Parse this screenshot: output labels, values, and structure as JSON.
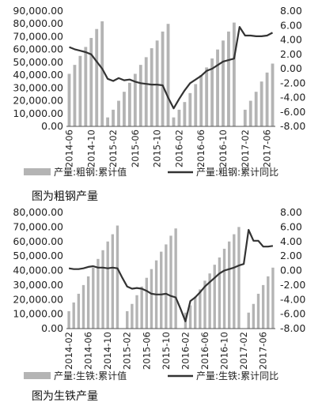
{
  "colors": {
    "bar": "#b4b4b4",
    "line": "#333333",
    "axis": "#555555"
  },
  "charts": [
    {
      "caption": "图为粗钢产量",
      "chart_data": {
        "type": "bar+line",
        "ylim_left": [
          0,
          90000
        ],
        "ylim_right": [
          -8,
          8
        ],
        "yticks_left": [
          "0.00",
          "10,000.00",
          "20,000.00",
          "30,000.00",
          "40,000.00",
          "50,000.00",
          "60,000.00",
          "70,000.00",
          "80,000.00",
          "90,000.00"
        ],
        "yticks_right": [
          "-8.00",
          "-6.00",
          "-4.00",
          "-2.00",
          "0.00",
          "2.00",
          "4.00",
          "6.00",
          "8.00"
        ],
        "x_tick_labels": [
          "2014-06",
          "2014-10",
          "2015-02",
          "2015-06",
          "2015-10",
          "2016-02",
          "2016-06",
          "2016-10",
          "2017-02",
          "2017-06"
        ],
        "series": [
          {
            "name": "产量:粗钢:累计值",
            "axis": "left",
            "type": "bar",
            "values": [
              41000,
              48000,
              55000,
              62000,
              69000,
              76000,
              82000,
              7000,
              13000,
              20000,
              27000,
              34000,
              41000,
              48000,
              54000,
              61000,
              67000,
              74000,
              80000,
              7000,
              13000,
              19000,
              26000,
              33000,
              40000,
              46000,
              53000,
              60000,
              67000,
              74000,
              81000,
              null,
              13000,
              20000,
              27000,
              35000,
              42000,
              49000
            ]
          },
          {
            "name": "产量:粗钢:累计同比",
            "axis": "right",
            "type": "line",
            "values": [
              3.0,
              2.7,
              2.5,
              2.3,
              2.0,
              1.0,
              0,
              -1.4,
              -1.7,
              -1.3,
              -1.6,
              -1.5,
              -1.8,
              -2.0,
              -2.1,
              -2.2,
              -2.2,
              -2.3,
              -4.0,
              -5.5,
              -4.2,
              -3.0,
              -2.0,
              -1.5,
              -1.0,
              -0.3,
              0,
              0.5,
              1.0,
              1.2,
              1.4,
              5.8,
              4.6,
              4.6,
              4.5,
              4.5,
              4.6,
              5.0
            ]
          }
        ]
      }
    },
    {
      "caption": "图为生铁产量",
      "chart_data": {
        "type": "bar+line",
        "ylim_left": [
          0,
          80000
        ],
        "ylim_right": [
          -8,
          8
        ],
        "yticks_left": [
          "0.00",
          "10,000.00",
          "20,000.00",
          "30,000.00",
          "40,000.00",
          "50,000.00",
          "60,000.00",
          "70,000.00",
          "80,000.00"
        ],
        "yticks_right": [
          "-8.00",
          "-6.00",
          "-4.00",
          "-2.00",
          "0.00",
          "2.00",
          "4.00",
          "6.00",
          "8.00"
        ],
        "x_tick_labels": [
          "2014-02",
          "2014-06",
          "2014-10",
          "2015-02",
          "2015-06",
          "2015-10",
          "2016-02",
          "2016-06",
          "2016-10",
          "2017-02",
          "2017-06"
        ],
        "series": [
          {
            "name": "产量:生铁:累计值",
            "axis": "left",
            "type": "bar",
            "values": [
              12000,
              18000,
              24000,
              30000,
              36000,
              42000,
              48000,
              54000,
              60000,
              65000,
              71000,
              null,
              12000,
              17000,
              23000,
              29000,
              35000,
              41000,
              47000,
              53000,
              58000,
              64000,
              69000,
              null,
              11000,
              16000,
              22000,
              27000,
              33000,
              38000,
              44000,
              49000,
              55000,
              60000,
              65000,
              70000,
              null,
              11000,
              17000,
              24000,
              30000,
              36000,
              42000
            ]
          },
          {
            "name": "产量:生铁:累计同比",
            "axis": "right",
            "type": "line",
            "values": [
              0.3,
              0.2,
              0.2,
              0.3,
              0.5,
              0.6,
              0.4,
              0.4,
              0.3,
              0.4,
              0.3,
              -1.0,
              -2.2,
              -2.5,
              -2.4,
              -2.5,
              -2.8,
              -3.2,
              -3.3,
              -3.3,
              -3.2,
              -3.5,
              -3.7,
              -5.3,
              -7.0,
              -4.2,
              -3.7,
              -3.0,
              -2.2,
              -1.6,
              -1.0,
              -0.4,
              0,
              0.2,
              0.4,
              0.7,
              0.9,
              5.6,
              4.1,
              4.1,
              3.3,
              3.3,
              3.4
            ]
          }
        ]
      }
    }
  ]
}
